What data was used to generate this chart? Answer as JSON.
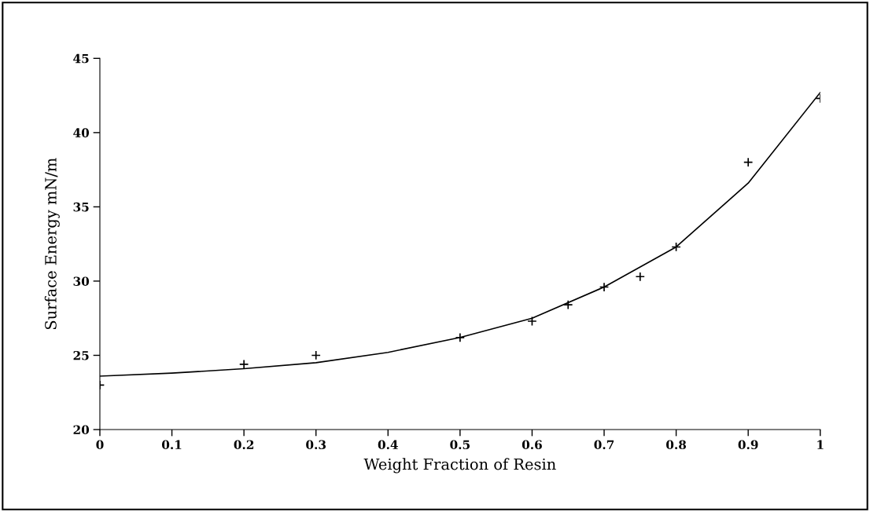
{
  "chart_data": {
    "type": "scatter",
    "xlabel": "Weight Fraction of Resin",
    "ylabel": "Surface Energy mN/m",
    "xlim": [
      0,
      1
    ],
    "xticks": [
      0,
      0.1,
      0.2,
      0.3,
      0.4,
      0.5,
      0.6,
      0.7,
      0.8,
      0.9,
      1
    ],
    "ylim": [
      20,
      45
    ],
    "yticks": [
      20,
      25,
      30,
      35,
      40,
      45
    ],
    "grid": false,
    "legend": false,
    "series": [
      {
        "marker": "cross",
        "color": "#000000",
        "x": [
          0,
          0.2,
          0.3,
          0.5,
          0.6,
          0.65,
          0.7,
          0.75,
          0.8,
          0.9,
          1
        ],
        "values": [
          23.0,
          24.4,
          25.0,
          26.2,
          27.3,
          28.4,
          29.6,
          30.3,
          32.3,
          38.0,
          42.3
        ]
      },
      {
        "type": "line",
        "marker": "none",
        "line_style": "solid",
        "color": "#000000",
        "x": [
          0,
          0.1,
          0.2,
          0.3,
          0.4,
          0.5,
          0.6,
          0.7,
          0.8,
          0.9,
          1
        ],
        "values": [
          23.6,
          23.8,
          24.1,
          24.5,
          25.2,
          26.2,
          27.5,
          29.6,
          32.3,
          36.6,
          42.7
        ]
      }
    ]
  }
}
